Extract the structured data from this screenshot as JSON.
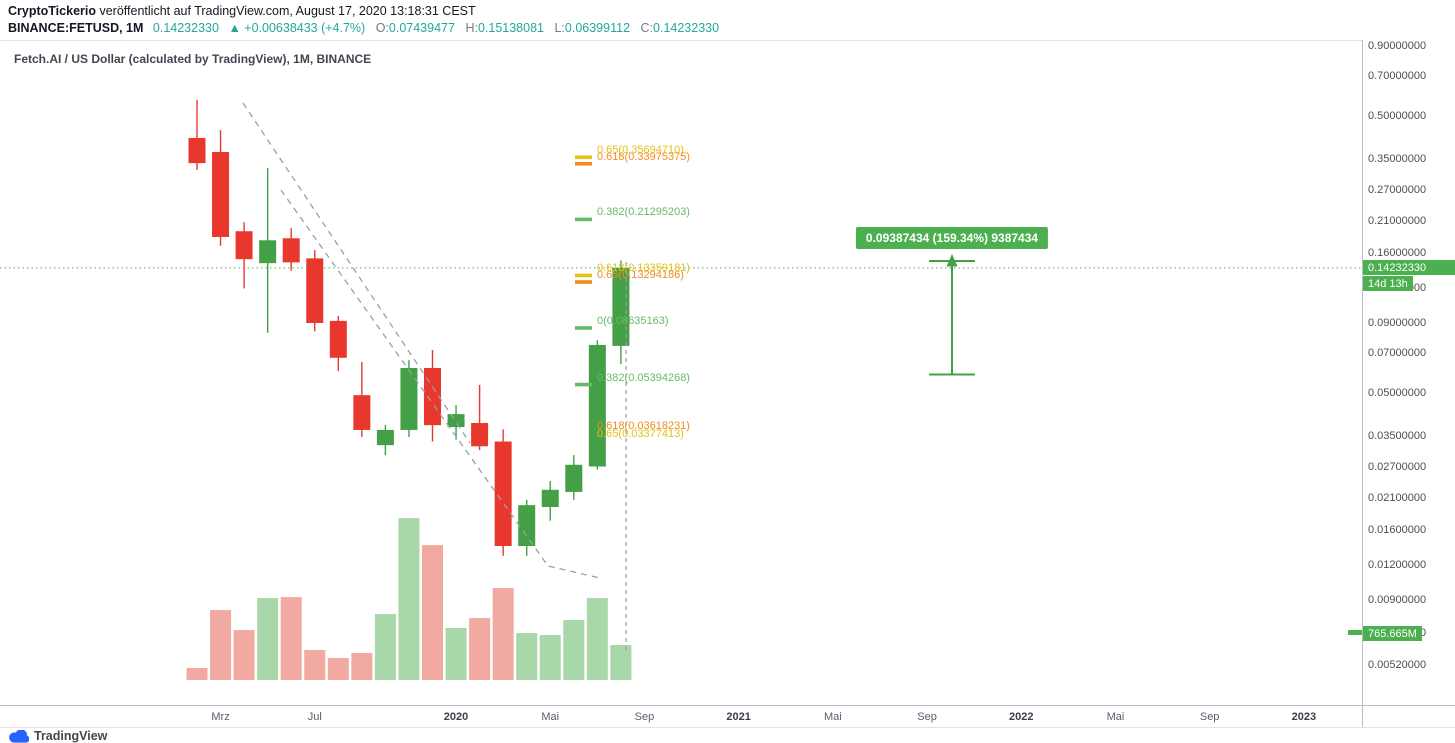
{
  "header": {
    "author": "CryptoTickerio",
    "published": " veröffentlicht auf TradingView.com, August 17, 2020 13:18:31 CEST",
    "symbol": "BINANCE:FETUSD, 1M",
    "last_price": "0.14232330",
    "change": "▲ +0.00638433 (+4.7%)",
    "ohlc": [
      {
        "label": "O:",
        "value": "0.07439477"
      },
      {
        "label": "H:",
        "value": "0.15138081"
      },
      {
        "label": "L:",
        "value": "0.06399112"
      },
      {
        "label": "C:",
        "value": "0.14232330"
      }
    ]
  },
  "chart": {
    "title": "Fetch.AI / US Dollar (calculated by TradingView), 1M, BINANCE"
  },
  "chart_data": {
    "type": "candlestick+volume",
    "symbol": "BINANCE:FETUSD",
    "interval": "1M",
    "price_scale": "log",
    "title": "Fetch.AI / US Dollar (calculated by TradingView), 1M, BINANCE",
    "candles": [
      {
        "t": "Feb 2019",
        "o": 0.419,
        "h": 0.575,
        "l": 0.321,
        "c": 0.34,
        "v": 262
      },
      {
        "t": "Mrz 2019",
        "o": 0.373,
        "h": 0.447,
        "l": 0.171,
        "c": 0.184,
        "v": 1530
      },
      {
        "t": "Apr 2019",
        "o": 0.193,
        "h": 0.208,
        "l": 0.12,
        "c": 0.153,
        "v": 1093
      },
      {
        "t": "Mai 2019",
        "o": 0.148,
        "h": 0.326,
        "l": 0.083,
        "c": 0.179,
        "v": 1792
      },
      {
        "t": "Jun 2019",
        "o": 0.182,
        "h": 0.198,
        "l": 0.139,
        "c": 0.149,
        "v": 1814
      },
      {
        "t": "Jul 2019",
        "o": 0.154,
        "h": 0.165,
        "l": 0.084,
        "c": 0.09,
        "v": 656
      },
      {
        "t": "Aug 2019",
        "o": 0.0916,
        "h": 0.0955,
        "l": 0.0604,
        "c": 0.0674,
        "v": 481
      },
      {
        "t": "Sep 2019",
        "o": 0.0494,
        "h": 0.0651,
        "l": 0.0349,
        "c": 0.037,
        "v": 590
      },
      {
        "t": "Okt 2019",
        "o": 0.0326,
        "h": 0.0386,
        "l": 0.03,
        "c": 0.037,
        "v": 1443
      },
      {
        "t": "Nov 2019",
        "o": 0.037,
        "h": 0.0661,
        "l": 0.0349,
        "c": 0.0619,
        "v": 3541
      },
      {
        "t": "Dez 2019",
        "o": 0.0619,
        "h": 0.0719,
        "l": 0.0336,
        "c": 0.0385,
        "v": 2951
      },
      {
        "t": "Jan 2020",
        "o": 0.0379,
        "h": 0.0455,
        "l": 0.0341,
        "c": 0.0422,
        "v": 1137
      },
      {
        "t": "Feb 2020",
        "o": 0.0392,
        "h": 0.0538,
        "l": 0.0313,
        "c": 0.0323,
        "v": 1355
      },
      {
        "t": "Mrz 2020",
        "o": 0.0336,
        "h": 0.0372,
        "l": 0.013,
        "c": 0.0141,
        "v": 2011
      },
      {
        "t": "Apr 2020",
        "o": 0.0141,
        "h": 0.0207,
        "l": 0.013,
        "c": 0.0198,
        "v": 1027
      },
      {
        "t": "Mai 2020",
        "o": 0.0195,
        "h": 0.0242,
        "l": 0.0174,
        "c": 0.0225,
        "v": 984
      },
      {
        "t": "Jun 2020",
        "o": 0.0221,
        "h": 0.03,
        "l": 0.0207,
        "c": 0.0277,
        "v": 1312
      },
      {
        "t": "Jul 2020",
        "o": 0.0273,
        "h": 0.078,
        "l": 0.0266,
        "c": 0.075,
        "v": 1792
      },
      {
        "t": "Aug 2020",
        "o": 0.07439477,
        "h": 0.15138081,
        "l": 0.06399112,
        "c": 0.1423233,
        "v": 765.665
      }
    ],
    "volume_unit": "M",
    "price_axis_labels": [
      "0.90000000",
      "0.70000000",
      "0.50000000",
      "0.35000000",
      "0.27000000",
      "0.21000000",
      "0.16000000",
      "0.12000000",
      "0.09000000",
      "0.07000000",
      "0.05000000",
      "0.03500000",
      "0.02700000",
      "0.02100000",
      "0.01600000",
      "0.01200000",
      "0.00900000",
      "0.00680000",
      "0.00520000"
    ],
    "time_axis": [
      {
        "label": "Mrz",
        "i": 1,
        "year": false
      },
      {
        "label": "Jul",
        "i": 5,
        "year": false
      },
      {
        "label": "2020",
        "i": 11,
        "year": true
      },
      {
        "label": "Mai",
        "i": 15,
        "year": false
      },
      {
        "label": "Sep",
        "i": 19,
        "year": false
      },
      {
        "label": "2021",
        "i": 23,
        "year": true
      },
      {
        "label": "Mai",
        "i": 27,
        "year": false
      },
      {
        "label": "Sep",
        "i": 31,
        "year": false
      },
      {
        "label": "2022",
        "i": 35,
        "year": true
      },
      {
        "label": "Mai",
        "i": 39,
        "year": false
      },
      {
        "label": "Sep",
        "i": 43,
        "year": false
      },
      {
        "label": "2023",
        "i": 47,
        "year": true
      }
    ],
    "fib_levels": [
      {
        "text": "0.65(0.35694710)",
        "price": 0.3569471,
        "color": "#e5c117",
        "tick": true
      },
      {
        "text": "0.618(0.33975375)",
        "price": 0.33975375,
        "color": "#f28c1b",
        "tick": true
      },
      {
        "text": "0.382(0.21295203)",
        "price": 0.21295203,
        "color": "#66bb6a",
        "tick": true
      },
      {
        "text": "0.618(0.13359181)",
        "price": 0.13359181,
        "color": "#e5c117",
        "tick": true
      },
      {
        "text": "0.65(0.13294186)",
        "price": 0.13294186,
        "color": "#f28c1b",
        "tick": true
      },
      {
        "text": "0(0.08635163)",
        "price": 0.08635163,
        "color": "#66bb6a",
        "tick": true
      },
      {
        "text": "0.382(0.05394268)",
        "price": 0.05394268,
        "color": "#66bb6a",
        "tick": true
      },
      {
        "text": "0.618(0.03618231)",
        "price": 0.03618231,
        "color": "#f28c1b",
        "tick": false
      },
      {
        "text": "0.65(0.03377413)",
        "price": 0.03377413,
        "color": "#e5c117",
        "tick": false
      }
    ],
    "projection": {
      "text": "0.09387434 (159.34%) 9387434"
    },
    "price_label": "0.14232330",
    "countdown": "14d 13h",
    "volume_label": "765.665M",
    "colors": {
      "up": "#43a047",
      "down": "#e8382e",
      "vol_up": "#a8d7a9",
      "vol_down": "#f2a9a2",
      "accent": "#4caf50",
      "legend_value": "#26a69a"
    }
  },
  "footer": {
    "logo_text": "TradingView"
  }
}
